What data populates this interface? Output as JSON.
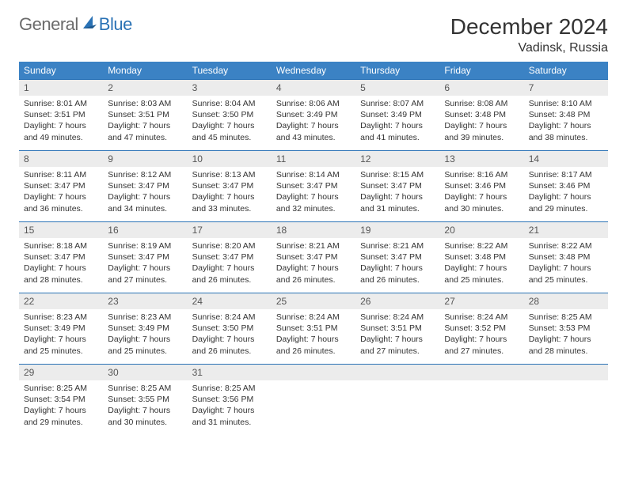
{
  "brand": {
    "part1": "General",
    "part2": "Blue"
  },
  "title": "December 2024",
  "subtitle": "Vadinsk, Russia",
  "header_bg": "#3b82c4",
  "header_fg": "#ffffff",
  "daynum_bg": "#ececec",
  "rule_color": "#2a72b5",
  "text_color": "#333333",
  "font_family": "Arial, Helvetica, sans-serif",
  "title_fontsize": 28,
  "subtitle_fontsize": 16,
  "dayhead_fontsize": 12,
  "body_fontsize": 10.5,
  "columns": [
    "Sunday",
    "Monday",
    "Tuesday",
    "Wednesday",
    "Thursday",
    "Friday",
    "Saturday"
  ],
  "weeks": [
    [
      {
        "n": "1",
        "sr": "8:01 AM",
        "ss": "3:51 PM",
        "dl": "7 hours and 49 minutes."
      },
      {
        "n": "2",
        "sr": "8:03 AM",
        "ss": "3:51 PM",
        "dl": "7 hours and 47 minutes."
      },
      {
        "n": "3",
        "sr": "8:04 AM",
        "ss": "3:50 PM",
        "dl": "7 hours and 45 minutes."
      },
      {
        "n": "4",
        "sr": "8:06 AM",
        "ss": "3:49 PM",
        "dl": "7 hours and 43 minutes."
      },
      {
        "n": "5",
        "sr": "8:07 AM",
        "ss": "3:49 PM",
        "dl": "7 hours and 41 minutes."
      },
      {
        "n": "6",
        "sr": "8:08 AM",
        "ss": "3:48 PM",
        "dl": "7 hours and 39 minutes."
      },
      {
        "n": "7",
        "sr": "8:10 AM",
        "ss": "3:48 PM",
        "dl": "7 hours and 38 minutes."
      }
    ],
    [
      {
        "n": "8",
        "sr": "8:11 AM",
        "ss": "3:47 PM",
        "dl": "7 hours and 36 minutes."
      },
      {
        "n": "9",
        "sr": "8:12 AM",
        "ss": "3:47 PM",
        "dl": "7 hours and 34 minutes."
      },
      {
        "n": "10",
        "sr": "8:13 AM",
        "ss": "3:47 PM",
        "dl": "7 hours and 33 minutes."
      },
      {
        "n": "11",
        "sr": "8:14 AM",
        "ss": "3:47 PM",
        "dl": "7 hours and 32 minutes."
      },
      {
        "n": "12",
        "sr": "8:15 AM",
        "ss": "3:47 PM",
        "dl": "7 hours and 31 minutes."
      },
      {
        "n": "13",
        "sr": "8:16 AM",
        "ss": "3:46 PM",
        "dl": "7 hours and 30 minutes."
      },
      {
        "n": "14",
        "sr": "8:17 AM",
        "ss": "3:46 PM",
        "dl": "7 hours and 29 minutes."
      }
    ],
    [
      {
        "n": "15",
        "sr": "8:18 AM",
        "ss": "3:47 PM",
        "dl": "7 hours and 28 minutes."
      },
      {
        "n": "16",
        "sr": "8:19 AM",
        "ss": "3:47 PM",
        "dl": "7 hours and 27 minutes."
      },
      {
        "n": "17",
        "sr": "8:20 AM",
        "ss": "3:47 PM",
        "dl": "7 hours and 26 minutes."
      },
      {
        "n": "18",
        "sr": "8:21 AM",
        "ss": "3:47 PM",
        "dl": "7 hours and 26 minutes."
      },
      {
        "n": "19",
        "sr": "8:21 AM",
        "ss": "3:47 PM",
        "dl": "7 hours and 26 minutes."
      },
      {
        "n": "20",
        "sr": "8:22 AM",
        "ss": "3:48 PM",
        "dl": "7 hours and 25 minutes."
      },
      {
        "n": "21",
        "sr": "8:22 AM",
        "ss": "3:48 PM",
        "dl": "7 hours and 25 minutes."
      }
    ],
    [
      {
        "n": "22",
        "sr": "8:23 AM",
        "ss": "3:49 PM",
        "dl": "7 hours and 25 minutes."
      },
      {
        "n": "23",
        "sr": "8:23 AM",
        "ss": "3:49 PM",
        "dl": "7 hours and 25 minutes."
      },
      {
        "n": "24",
        "sr": "8:24 AM",
        "ss": "3:50 PM",
        "dl": "7 hours and 26 minutes."
      },
      {
        "n": "25",
        "sr": "8:24 AM",
        "ss": "3:51 PM",
        "dl": "7 hours and 26 minutes."
      },
      {
        "n": "26",
        "sr": "8:24 AM",
        "ss": "3:51 PM",
        "dl": "7 hours and 27 minutes."
      },
      {
        "n": "27",
        "sr": "8:24 AM",
        "ss": "3:52 PM",
        "dl": "7 hours and 27 minutes."
      },
      {
        "n": "28",
        "sr": "8:25 AM",
        "ss": "3:53 PM",
        "dl": "7 hours and 28 minutes."
      }
    ],
    [
      {
        "n": "29",
        "sr": "8:25 AM",
        "ss": "3:54 PM",
        "dl": "7 hours and 29 minutes."
      },
      {
        "n": "30",
        "sr": "8:25 AM",
        "ss": "3:55 PM",
        "dl": "7 hours and 30 minutes."
      },
      {
        "n": "31",
        "sr": "8:25 AM",
        "ss": "3:56 PM",
        "dl": "7 hours and 31 minutes."
      },
      null,
      null,
      null,
      null
    ]
  ],
  "labels": {
    "sunrise": "Sunrise:",
    "sunset": "Sunset:",
    "daylight": "Daylight:"
  }
}
